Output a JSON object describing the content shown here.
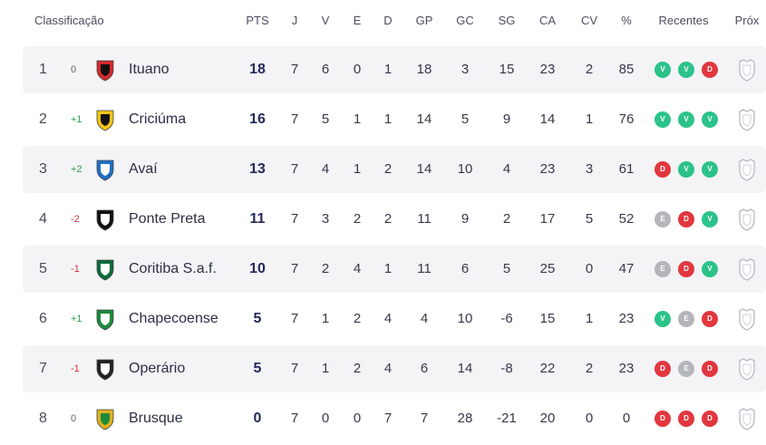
{
  "headers": {
    "title": "Classificação",
    "pts": "PTS",
    "j": "J",
    "v": "V",
    "e": "E",
    "d": "D",
    "gp": "GP",
    "gc": "GC",
    "sg": "SG",
    "ca": "CA",
    "cv": "CV",
    "pct": "%",
    "recentes": "Recentes",
    "prox": "Próx"
  },
  "teams": [
    {
      "pos": "1",
      "chg": "0",
      "dir": "same",
      "name": "Ituano",
      "pts": "18",
      "j": "7",
      "v": "6",
      "e": "0",
      "d": "1",
      "gp": "18",
      "gc": "3",
      "sg": "15",
      "ca": "23",
      "cv": "2",
      "pct": "85",
      "recent": [
        "V",
        "V",
        "D"
      ],
      "crest_colors": [
        "#d32a2a",
        "#111111"
      ]
    },
    {
      "pos": "2",
      "chg": "+1",
      "dir": "up",
      "name": "Criciúma",
      "pts": "16",
      "j": "7",
      "v": "5",
      "e": "1",
      "d": "1",
      "gp": "14",
      "gc": "5",
      "sg": "9",
      "ca": "14",
      "cv": "1",
      "pct": "76",
      "recent": [
        "V",
        "V",
        "V"
      ],
      "crest_colors": [
        "#f2c516",
        "#111111"
      ]
    },
    {
      "pos": "3",
      "chg": "+2",
      "dir": "up",
      "name": "Avaí",
      "pts": "13",
      "j": "7",
      "v": "4",
      "e": "1",
      "d": "2",
      "gp": "14",
      "gc": "10",
      "sg": "4",
      "ca": "23",
      "cv": "3",
      "pct": "61",
      "recent": [
        "D",
        "V",
        "V"
      ],
      "crest_colors": [
        "#1f6fc4",
        "#ffffff"
      ]
    },
    {
      "pos": "4",
      "chg": "-2",
      "dir": "down",
      "name": "Ponte Preta",
      "pts": "11",
      "j": "7",
      "v": "3",
      "e": "2",
      "d": "2",
      "gp": "11",
      "gc": "9",
      "sg": "2",
      "ca": "17",
      "cv": "5",
      "pct": "52",
      "recent": [
        "E",
        "D",
        "V"
      ],
      "crest_colors": [
        "#111111",
        "#ffffff"
      ]
    },
    {
      "pos": "5",
      "chg": "-1",
      "dir": "down",
      "name": "Coritiba S.a.f.",
      "pts": "10",
      "j": "7",
      "v": "2",
      "e": "4",
      "d": "1",
      "gp": "11",
      "gc": "6",
      "sg": "5",
      "ca": "25",
      "cv": "0",
      "pct": "47",
      "recent": [
        "E",
        "D",
        "V"
      ],
      "crest_colors": [
        "#0c6b3a",
        "#ffffff"
      ]
    },
    {
      "pos": "6",
      "chg": "+1",
      "dir": "up",
      "name": "Chapecoense",
      "pts": "5",
      "j": "7",
      "v": "1",
      "e": "2",
      "d": "4",
      "gp": "4",
      "gc": "10",
      "sg": "-6",
      "ca": "15",
      "cv": "1",
      "pct": "23",
      "recent": [
        "V",
        "E",
        "D"
      ],
      "crest_colors": [
        "#1d8a3c",
        "#ffffff"
      ]
    },
    {
      "pos": "7",
      "chg": "-1",
      "dir": "down",
      "name": "Operário",
      "pts": "5",
      "j": "7",
      "v": "1",
      "e": "2",
      "d": "4",
      "gp": "6",
      "gc": "14",
      "sg": "-8",
      "ca": "22",
      "cv": "2",
      "pct": "23",
      "recent": [
        "D",
        "E",
        "D"
      ],
      "crest_colors": [
        "#222222",
        "#ffffff"
      ]
    },
    {
      "pos": "8",
      "chg": "0",
      "dir": "same",
      "name": "Brusque",
      "pts": "0",
      "j": "7",
      "v": "0",
      "e": "0",
      "d": "7",
      "gp": "7",
      "gc": "28",
      "sg": "-21",
      "ca": "20",
      "cv": "0",
      "pct": "0",
      "recent": [
        "D",
        "D",
        "D"
      ],
      "crest_colors": [
        "#e0b020",
        "#1c8a3a"
      ]
    }
  ]
}
